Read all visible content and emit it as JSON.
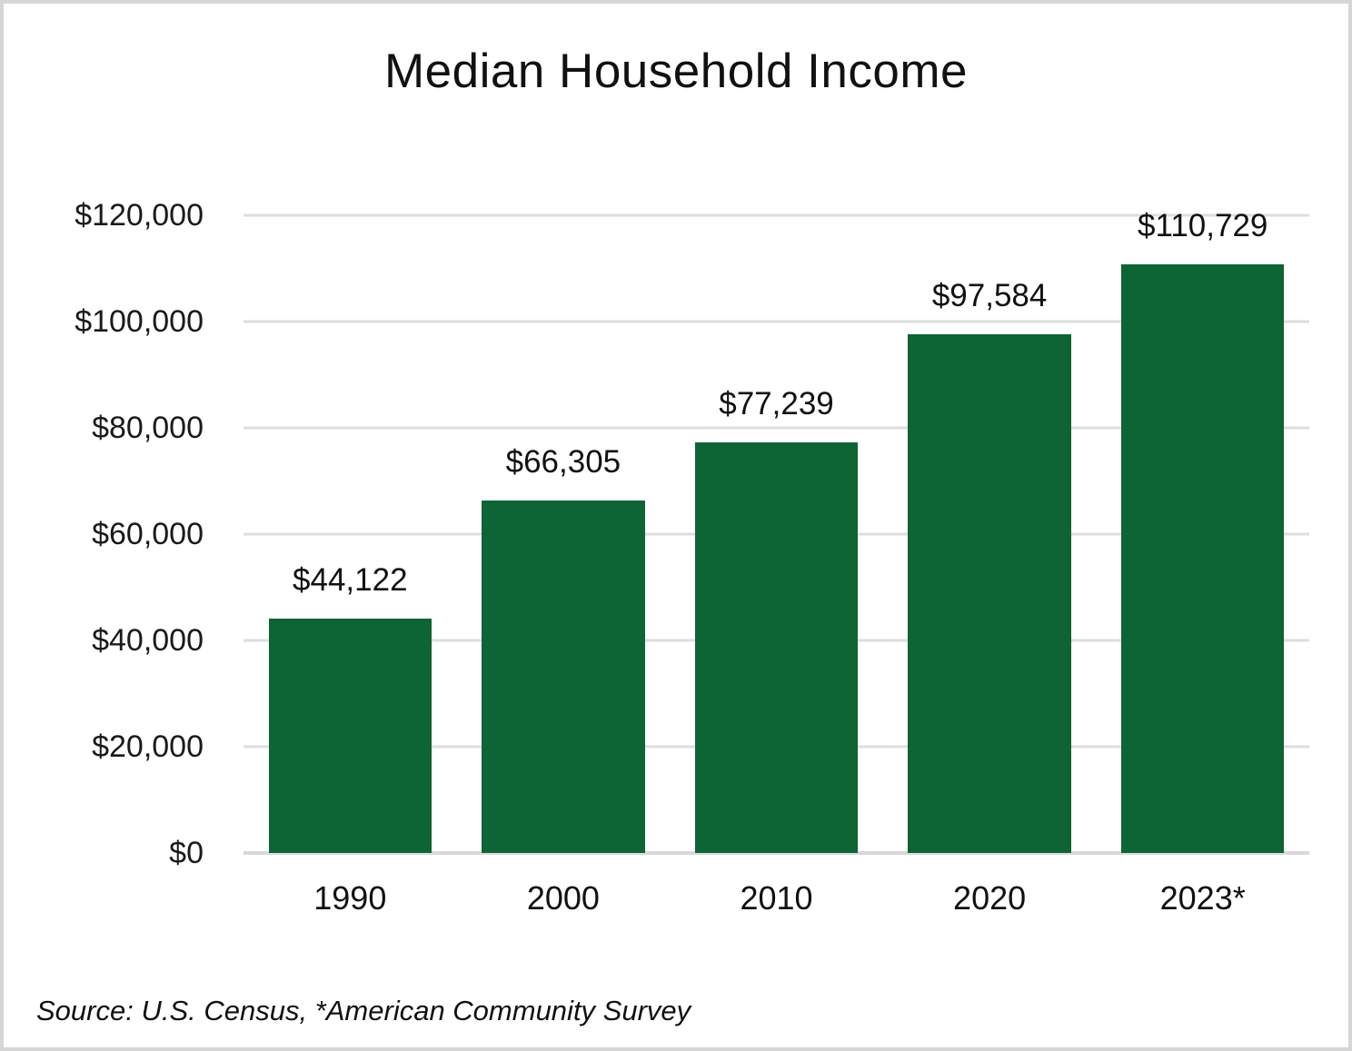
{
  "chart": {
    "title": "Median Household Income",
    "source_note": "Source: U.S. Census, *American Community Survey"
  },
  "chart_data": {
    "type": "bar",
    "title": "Median Household Income",
    "categories": [
      "1990",
      "2000",
      "2010",
      "2020",
      "2023*"
    ],
    "values": [
      44122,
      66305,
      77239,
      97584,
      110729
    ],
    "value_labels": [
      "$44,122",
      "$66,305",
      "$77,239",
      "$97,584",
      "$110,729"
    ],
    "xlabel": "",
    "ylabel": "",
    "ylim": [
      0,
      120000
    ],
    "ytick_step": 20000,
    "ytick_labels": [
      "$0",
      "$20,000",
      "$40,000",
      "$60,000",
      "$80,000",
      "$100,000",
      "$120,000"
    ],
    "grid": true,
    "legend": false,
    "bar_color": "#0d6434",
    "gridline_color": "#dedede",
    "baseline_color": "#d9d9d9",
    "annotation": "Source: U.S. Census, *American Community Survey"
  }
}
